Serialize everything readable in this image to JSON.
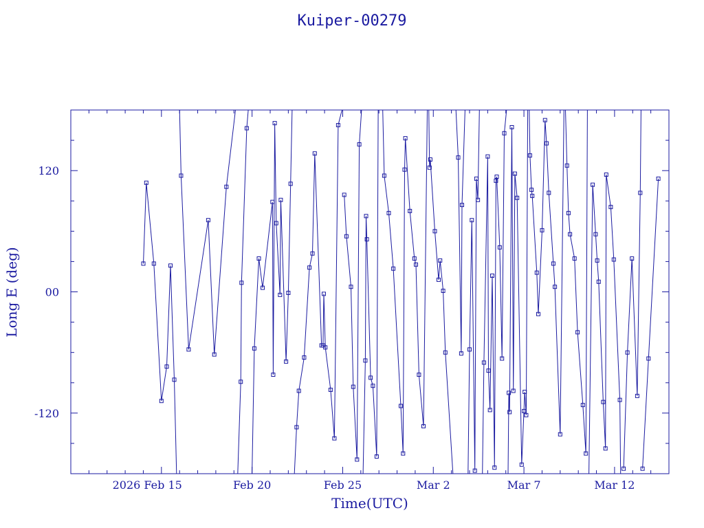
{
  "chart_data": {
    "type": "line",
    "title": "Kuiper-00279",
    "xlabel": "Time(UTC)",
    "ylabel": "Long E (deg)",
    "x_ticks": [
      {
        "date": "2026-02-15",
        "label": "2026 Feb 15"
      },
      {
        "date": "2026-02-20",
        "label": "Feb 20"
      },
      {
        "date": "2026-02-25",
        "label": "Feb 25"
      },
      {
        "date": "2026-03-02",
        "label": "Mar  2"
      },
      {
        "date": "2026-03-07",
        "label": "Mar  7"
      },
      {
        "date": "2026-03-12",
        "label": "Mar 12"
      }
    ],
    "y_ticks": [
      {
        "value": 120,
        "label": "120"
      },
      {
        "value": 0,
        "label": "00"
      },
      {
        "value": -120,
        "label": "-120"
      }
    ],
    "xlim": [
      "2026-02-10 00:00",
      "2026-03-15 00:00"
    ],
    "ylim": [
      -180,
      180
    ],
    "color": "#1a1aa0",
    "marker": "square",
    "series": [
      {
        "points": [
          [
            "2026-02-14 00:00",
            28
          ],
          [
            "2026-02-14 04:00",
            108
          ],
          [
            "2026-02-14 14:00",
            28
          ],
          [
            "2026-02-15 00:00",
            -108
          ],
          [
            "2026-02-15 07:00",
            -74
          ],
          [
            "2026-02-15 12:00",
            26
          ],
          [
            "2026-02-15 17:00",
            -87
          ],
          [
            "2026-02-15 20:00",
            -180
          ]
        ]
      },
      {
        "points": [
          [
            "2026-02-16 00:00",
            180
          ],
          [
            "2026-02-16 02:00",
            115
          ],
          [
            "2026-02-16 12:00",
            -57
          ],
          [
            "2026-02-17 14:00",
            71
          ],
          [
            "2026-02-17 22:00",
            -62
          ],
          [
            "2026-02-18 14:00",
            104
          ],
          [
            "2026-02-19 02:00",
            180
          ]
        ]
      },
      {
        "points": [
          [
            "2026-02-19 05:00",
            -180
          ],
          [
            "2026-02-19 09:00",
            -89
          ],
          [
            "2026-02-19 10:00",
            9
          ],
          [
            "2026-02-19 17:00",
            162
          ],
          [
            "2026-02-19 19:00",
            180
          ]
        ]
      },
      {
        "points": [
          [
            "2026-02-20 00:00",
            -180
          ],
          [
            "2026-02-20 03:00",
            -56
          ],
          [
            "2026-02-20 09:00",
            33
          ],
          [
            "2026-02-20 14:00",
            4
          ],
          [
            "2026-02-21 03:00",
            89
          ],
          [
            "2026-02-21 04:00",
            -82
          ],
          [
            "2026-02-21 06:00",
            167
          ],
          [
            "2026-02-21 08:00",
            68
          ],
          [
            "2026-02-21 13:00",
            -3
          ],
          [
            "2026-02-21 14:00",
            91
          ],
          [
            "2026-02-21 21:00",
            -69
          ],
          [
            "2026-02-22 00:00",
            -1
          ],
          [
            "2026-02-22 03:00",
            107
          ],
          [
            "2026-02-22 05:00",
            180
          ]
        ]
      },
      {
        "points": [
          [
            "2026-02-22 08:00",
            -180
          ],
          [
            "2026-02-22 11:00",
            -134
          ],
          [
            "2026-02-22 14:00",
            -98
          ],
          [
            "2026-02-22 21:00",
            -65
          ],
          [
            "2026-02-23 04:00",
            24
          ],
          [
            "2026-02-23 08:00",
            38
          ],
          [
            "2026-02-23 11:00",
            137
          ],
          [
            "2026-02-23 20:00",
            -53
          ],
          [
            "2026-02-23 22:00",
            -53
          ],
          [
            "2026-02-23 23:00",
            -2
          ],
          [
            "2026-02-24 01:00",
            -55
          ],
          [
            "2026-02-24 08:00",
            -97
          ],
          [
            "2026-02-24 13:00",
            -145
          ],
          [
            "2026-02-24 18:00",
            165
          ],
          [
            "2026-02-24 23:00",
            180
          ]
        ]
      },
      {
        "points": [
          [
            "2026-02-25 02:00",
            96
          ],
          [
            "2026-02-25 05:00",
            55
          ],
          [
            "2026-02-25 11:00",
            5
          ],
          [
            "2026-02-25 14:00",
            -94
          ],
          [
            "2026-02-25 19:00",
            -166
          ],
          [
            "2026-02-25 22:00",
            146
          ],
          [
            "2026-02-26 01:00",
            180
          ]
        ]
      },
      {
        "points": [
          [
            "2026-02-26 03:00",
            -180
          ],
          [
            "2026-02-26 06:00",
            -68
          ],
          [
            "2026-02-26 07:00",
            75
          ],
          [
            "2026-02-26 08:00",
            52
          ],
          [
            "2026-02-26 13:00",
            -85
          ],
          [
            "2026-02-26 16:00",
            -93
          ],
          [
            "2026-02-26 21:00",
            -163
          ],
          [
            "2026-02-26 23:00",
            180
          ]
        ]
      },
      {
        "points": [
          [
            "2026-02-27 05:00",
            180
          ],
          [
            "2026-02-27 07:00",
            115
          ],
          [
            "2026-02-27 13:00",
            78
          ],
          [
            "2026-02-27 19:00",
            23
          ],
          [
            "2026-02-28 05:00",
            -113
          ],
          [
            "2026-02-28 08:00",
            -160
          ],
          [
            "2026-02-28 10:00",
            121
          ],
          [
            "2026-02-28 11:00",
            152
          ],
          [
            "2026-02-28 17:00",
            80
          ],
          [
            "2026-02-28 23:00",
            33
          ],
          [
            "2026-03-01 01:00",
            27
          ],
          [
            "2026-03-01 05:00",
            -82
          ],
          [
            "2026-03-01 11:00",
            -133
          ],
          [
            "2026-03-01 16:00",
            180
          ]
        ]
      },
      {
        "points": [
          [
            "2026-03-01 18:00",
            180
          ],
          [
            "2026-03-01 19:00",
            123
          ],
          [
            "2026-03-01 20:00",
            131
          ],
          [
            "2026-03-02 02:00",
            60
          ],
          [
            "2026-03-02 07:00",
            12
          ],
          [
            "2026-03-02 09:00",
            31
          ],
          [
            "2026-03-02 13:00",
            1
          ],
          [
            "2026-03-02 16:00",
            -60
          ],
          [
            "2026-03-03 02:00",
            -180
          ]
        ]
      },
      {
        "points": [
          [
            "2026-03-03 06:00",
            180
          ],
          [
            "2026-03-03 09:00",
            133
          ],
          [
            "2026-03-03 13:00",
            -61
          ],
          [
            "2026-03-03 14:00",
            86
          ],
          [
            "2026-03-03 18:00",
            180
          ]
        ]
      },
      {
        "points": [
          [
            "2026-03-03 22:00",
            -180
          ],
          [
            "2026-03-04 00:00",
            -57
          ],
          [
            "2026-03-04 03:00",
            71
          ],
          [
            "2026-03-04 07:00",
            -177
          ],
          [
            "2026-03-04 09:00",
            112
          ],
          [
            "2026-03-04 11:00",
            91
          ],
          [
            "2026-03-04 13:00",
            180
          ]
        ]
      },
      {
        "points": [
          [
            "2026-03-04 17:00",
            -180
          ],
          [
            "2026-03-04 19:00",
            -70
          ],
          [
            "2026-03-05 00:00",
            134
          ],
          [
            "2026-03-05 01:00",
            -78
          ],
          [
            "2026-03-05 03:00",
            -117
          ],
          [
            "2026-03-05 06:00",
            16
          ],
          [
            "2026-03-05 09:00",
            -174
          ],
          [
            "2026-03-05 11:00",
            110
          ],
          [
            "2026-03-05 12:00",
            114
          ],
          [
            "2026-03-05 16:00",
            44
          ],
          [
            "2026-03-05 19:00",
            -66
          ],
          [
            "2026-03-05 22:00",
            157
          ],
          [
            "2026-03-06 01:00",
            180
          ]
        ]
      },
      {
        "points": [
          [
            "2026-03-06 03:00",
            -180
          ],
          [
            "2026-03-06 04:00",
            -100
          ],
          [
            "2026-03-06 05:00",
            -119
          ],
          [
            "2026-03-06 08:00",
            163
          ],
          [
            "2026-03-06 10:00",
            -98
          ],
          [
            "2026-03-06 12:00",
            117
          ],
          [
            "2026-03-06 15:00",
            93
          ],
          [
            "2026-03-06 21:00",
            -171
          ],
          [
            "2026-03-07 00:00",
            -118
          ],
          [
            "2026-03-07 01:00",
            -99
          ],
          [
            "2026-03-07 03:00",
            -122
          ],
          [
            "2026-03-07 05:00",
            180
          ]
        ]
      },
      {
        "points": [
          [
            "2026-03-07 07:00",
            180
          ],
          [
            "2026-03-07 08:00",
            135
          ],
          [
            "2026-03-07 10:00",
            101
          ],
          [
            "2026-03-07 11:00",
            95
          ],
          [
            "2026-03-07 17:00",
            19
          ],
          [
            "2026-03-07 19:00",
            -22
          ],
          [
            "2026-03-08 00:00",
            61
          ],
          [
            "2026-03-08 04:00",
            170
          ],
          [
            "2026-03-08 06:00",
            147
          ],
          [
            "2026-03-08 09:00",
            98
          ],
          [
            "2026-03-08 15:00",
            28
          ],
          [
            "2026-03-08 17:00",
            5
          ],
          [
            "2026-03-09 00:00",
            -141
          ],
          [
            "2026-03-09 05:00",
            180
          ]
        ]
      },
      {
        "points": [
          [
            "2026-03-09 07:00",
            180
          ],
          [
            "2026-03-09 09:00",
            125
          ],
          [
            "2026-03-09 11:00",
            78
          ],
          [
            "2026-03-09 13:00",
            57
          ],
          [
            "2026-03-09 19:00",
            33
          ],
          [
            "2026-03-09 23:00",
            -40
          ],
          [
            "2026-03-10 06:00",
            -112
          ],
          [
            "2026-03-10 10:00",
            -160
          ],
          [
            "2026-03-10 12:00",
            180
          ]
        ]
      },
      {
        "points": [
          [
            "2026-03-10 14:00",
            -180
          ],
          [
            "2026-03-10 19:00",
            106
          ],
          [
            "2026-03-10 23:00",
            57
          ],
          [
            "2026-03-11 01:00",
            31
          ],
          [
            "2026-03-11 03:00",
            10
          ],
          [
            "2026-03-11 09:00",
            -109
          ],
          [
            "2026-03-11 12:00",
            -155
          ],
          [
            "2026-03-11 13:00",
            116
          ],
          [
            "2026-03-11 19:00",
            84
          ],
          [
            "2026-03-11 23:00",
            32
          ],
          [
            "2026-03-12 07:00",
            -107
          ],
          [
            "2026-03-12 08:00",
            -180
          ]
        ]
      },
      {
        "points": [
          [
            "2026-03-12 12:00",
            -175
          ],
          [
            "2026-03-12 17:00",
            -60
          ],
          [
            "2026-03-12 23:00",
            33
          ],
          [
            "2026-03-13 06:00",
            -103
          ],
          [
            "2026-03-13 10:00",
            98
          ],
          [
            "2026-03-13 11:00",
            180
          ]
        ]
      },
      {
        "points": [
          [
            "2026-03-13 13:00",
            -175
          ],
          [
            "2026-03-13 21:00",
            -66
          ],
          [
            "2026-03-14 10:00",
            112
          ]
        ]
      }
    ]
  }
}
